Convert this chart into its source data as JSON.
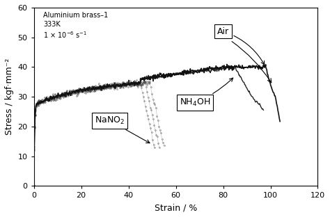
{
  "xlabel": "Strain / %",
  "ylabel": "Stress / kgf·mm⁻²",
  "xlim": [
    0,
    120
  ],
  "ylim": [
    0,
    60
  ],
  "xticks": [
    0,
    20,
    40,
    60,
    80,
    100,
    120
  ],
  "yticks": [
    0,
    10,
    20,
    30,
    40,
    50,
    60
  ],
  "label_Air": "Air",
  "label_NH4OH": "NH₄OH",
  "label_NaNO2": "NaNO₂",
  "background_color": "#ffffff",
  "line_color_air": "#111111",
  "line_color_nh4oh": "#222222",
  "line_color_nano2": "#444444",
  "figsize": [
    4.74,
    3.12
  ],
  "dpi": 100,
  "anno_line1": "Aluminium brass–1",
  "anno_line2": "333K",
  "anno_line3": "1 × 10⁻⁶ s⁻¹"
}
